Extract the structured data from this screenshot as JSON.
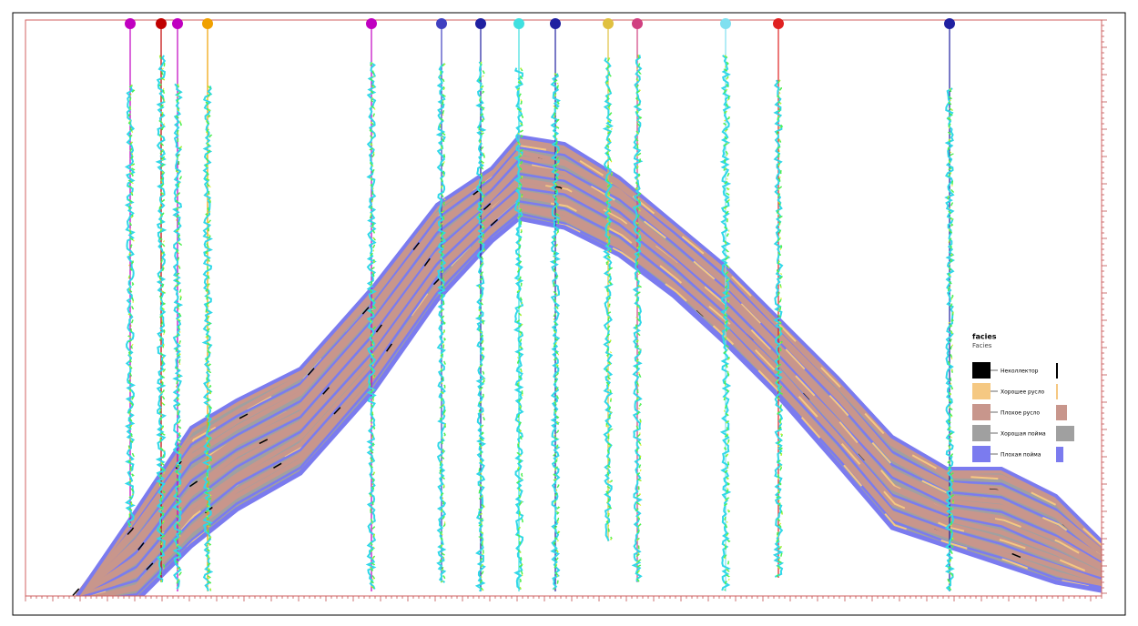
{
  "legend": {
    "title": "facies",
    "subtitle": "Facies",
    "items": [
      {
        "label": "Неколлектор",
        "color": "#000000",
        "share": 1
      },
      {
        "label": "Хорошее русло",
        "color": "#f5c882",
        "share": 1
      },
      {
        "label": "Плохое русло",
        "color": "#c8968c",
        "share": 6
      },
      {
        "label": "Хорошая пойма",
        "color": "#a0a0a0",
        "share": 10
      },
      {
        "label": "Плохая пойма",
        "color": "#7b7bef",
        "share": 4
      }
    ]
  }
}
